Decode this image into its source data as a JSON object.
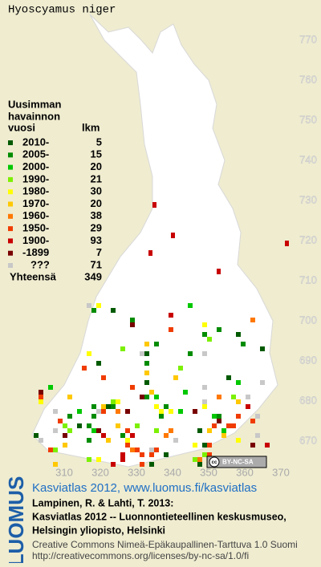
{
  "title": "Hyoscyamus niger",
  "legend": {
    "heading": [
      "Uusimman",
      "havainnon"
    ],
    "columns": [
      "vuosi",
      "lkm"
    ],
    "rows": [
      {
        "label": "2010-",
        "count": 5,
        "color": "#005a00"
      },
      {
        "label": "2005-",
        "count": 15,
        "color": "#008c00"
      },
      {
        "label": "2000-",
        "count": 20,
        "color": "#00c800"
      },
      {
        "label": "1990-",
        "count": 21,
        "color": "#7cf000"
      },
      {
        "label": "1980-",
        "count": 30,
        "color": "#ffff00"
      },
      {
        "label": "1970-",
        "count": 20,
        "color": "#ffc800"
      },
      {
        "label": "1960-",
        "count": 38,
        "color": "#ff7800"
      },
      {
        "label": "1950-",
        "count": 29,
        "color": "#f03c00"
      },
      {
        "label": "1900-",
        "count": 93,
        "color": "#c80000"
      },
      {
        "label": "-1899",
        "count": 7,
        "color": "#780000"
      },
      {
        "label": "???",
        "count": 71,
        "color": "#c8c8c8"
      }
    ],
    "total": {
      "label": "Yhteensä",
      "count": 349
    }
  },
  "map": {
    "yticks": [
      770,
      760,
      750,
      740,
      730,
      720,
      710,
      700,
      690,
      680,
      670
    ],
    "xticks": [
      310,
      320,
      330,
      340,
      350,
      360,
      370
    ],
    "license_badge": "BY-NC-SA"
  },
  "footer": {
    "logo": "LUOMUS",
    "link": "Kasviatlas 2012, www.luomus.fi/kasviatlas",
    "citation": [
      "Lampinen, R. & Lahti, T. 2013:",
      "Kasviatlas 2012 -- Luonnontieteellinen keskusmuseo,",
      "Helsingin yliopisto, Helsinki"
    ],
    "license": [
      "Creative Commons Nimeä-Epäkaupallinen-Tarttuva 1.0 Suomi",
      "http://creativecommons.org/licenses/by-nc-sa/1.0/fi"
    ]
  }
}
